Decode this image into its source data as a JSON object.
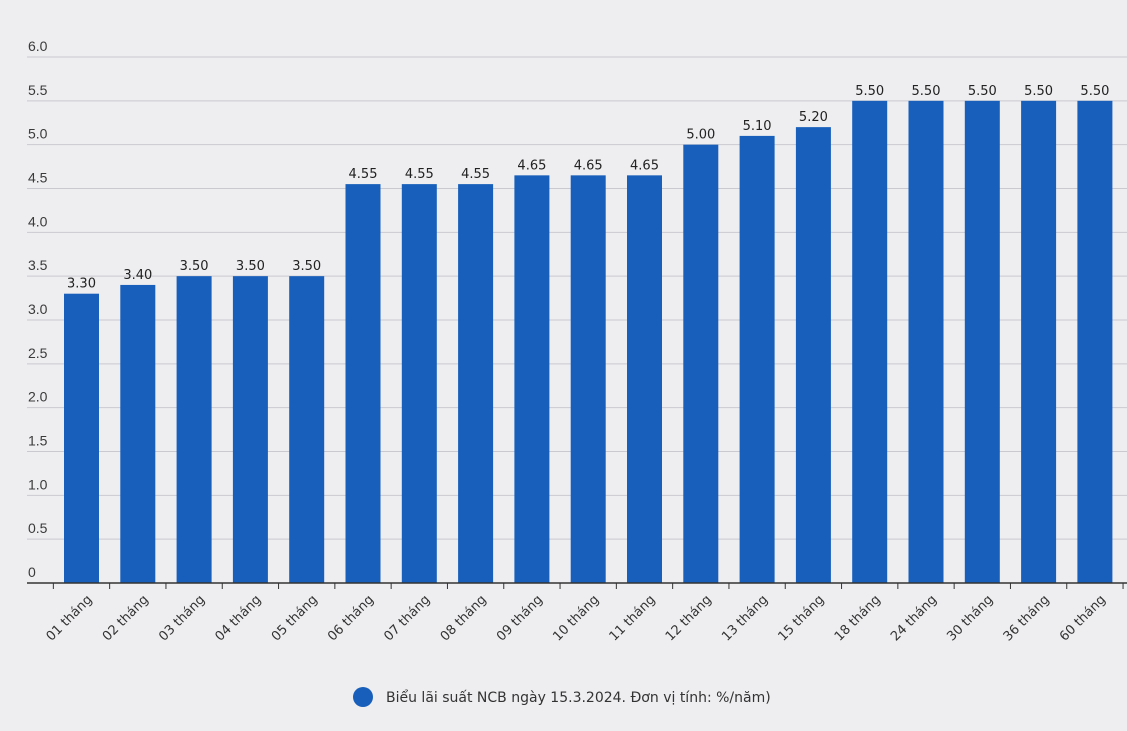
{
  "chart_data": {
    "type": "bar",
    "categories": [
      "01 tháng",
      "02 tháng",
      "03 tháng",
      "04 tháng",
      "05 tháng",
      "06 tháng",
      "07 tháng",
      "08 tháng",
      "09 tháng",
      "10 tháng",
      "11 tháng",
      "12 tháng",
      "13 tháng",
      "15 tháng",
      "18 tháng",
      "24 tháng",
      "30 tháng",
      "36 tháng",
      "60 tháng"
    ],
    "series": [
      {
        "name": "Biểu lãi suất NCB ngày 15.3.2024. Đơn vị tính: %/năm)",
        "values": [
          3.3,
          3.4,
          3.5,
          3.5,
          3.5,
          4.55,
          4.55,
          4.55,
          4.65,
          4.65,
          4.65,
          5.0,
          5.1,
          5.2,
          5.5,
          5.5,
          5.5,
          5.5,
          5.5
        ],
        "value_labels": [
          "3.30",
          "3.40",
          "3.50",
          "3.50",
          "3.50",
          "4.55",
          "4.55",
          "4.55",
          "4.65",
          "4.65",
          "4.65",
          "5.00",
          "5.10",
          "5.20",
          "5.50",
          "5.50",
          "5.50",
          "5.50",
          "5.50"
        ]
      }
    ],
    "y_ticks": [
      "0",
      "0.5",
      "1.0",
      "1.5",
      "2.0",
      "2.5",
      "3.0",
      "3.5",
      "4.0",
      "4.5",
      "5.0",
      "5.5",
      "6.0"
    ],
    "ylim": [
      0,
      6
    ],
    "grid": true,
    "legend_position": "bottom-center",
    "colors": {
      "bar": "#175fba",
      "grid": "#c9c9cf",
      "axis": "#333333"
    },
    "title": "",
    "xlabel": "",
    "ylabel": ""
  }
}
